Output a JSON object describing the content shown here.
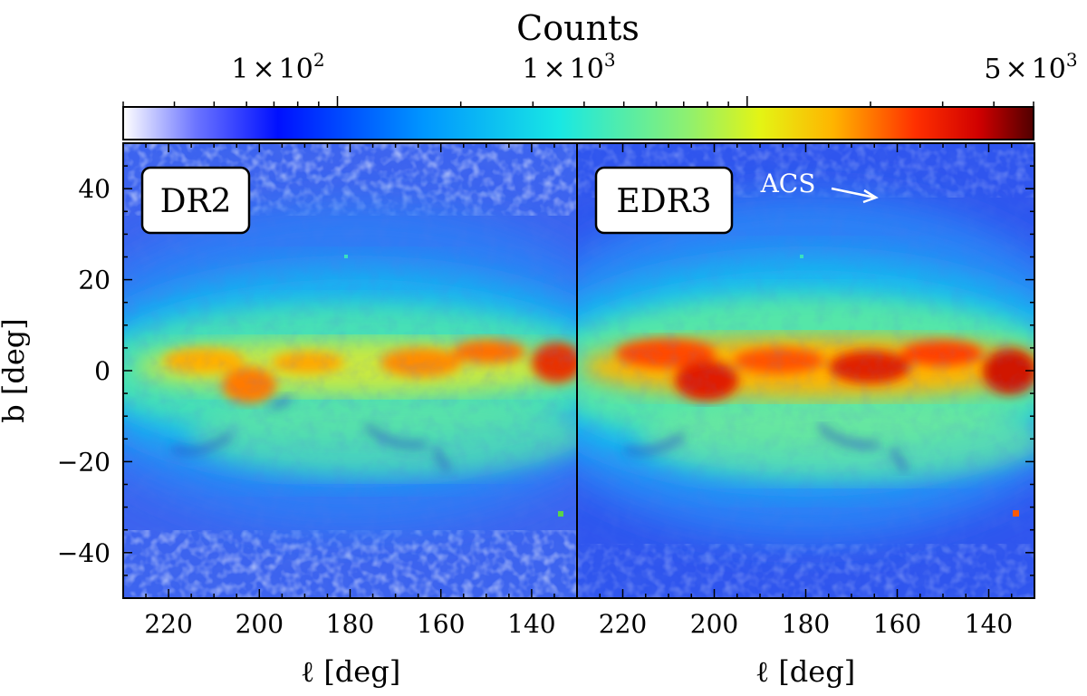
{
  "chart_data": [
    {
      "type": "heatmap",
      "panel_label": "DR2",
      "xlabel": "ℓ [deg]",
      "ylabel": "b [deg]",
      "xlim": [
        230,
        130
      ],
      "ylim": [
        -50,
        50
      ],
      "xticks": [
        220,
        200,
        180,
        160,
        140
      ],
      "yticks": [
        40,
        20,
        0,
        -20,
        -40
      ],
      "disk_peak_fraction": 0.72,
      "features": [
        "Galactic disk band near b=0",
        "dust lanes below plane near b=-20",
        "sparse high-latitude regions"
      ]
    },
    {
      "type": "heatmap",
      "panel_label": "EDR3",
      "xlabel": "ℓ [deg]",
      "xlim": [
        230,
        130
      ],
      "ylim": [
        -50,
        50
      ],
      "xticks": [
        220,
        200,
        180,
        160,
        140
      ],
      "disk_peak_fraction": 0.9,
      "annotation": "ACS",
      "features": [
        "denser Galactic disk band near b=0",
        "dust lanes below plane near b=-20"
      ]
    }
  ],
  "colorbar": {
    "title": "Counts",
    "scale": "log",
    "min": 30,
    "max": 5000,
    "tick_labels": [
      {
        "value": 100,
        "mantissa": "1",
        "exponent": "2"
      },
      {
        "value": 1000,
        "mantissa": "1",
        "exponent": "3"
      },
      {
        "value": 5000,
        "mantissa": "5",
        "exponent": "3"
      }
    ],
    "colormap": [
      "#ffffff",
      "#0000ff",
      "#00ffff",
      "#ffff00",
      "#ff0000",
      "#600000"
    ]
  }
}
